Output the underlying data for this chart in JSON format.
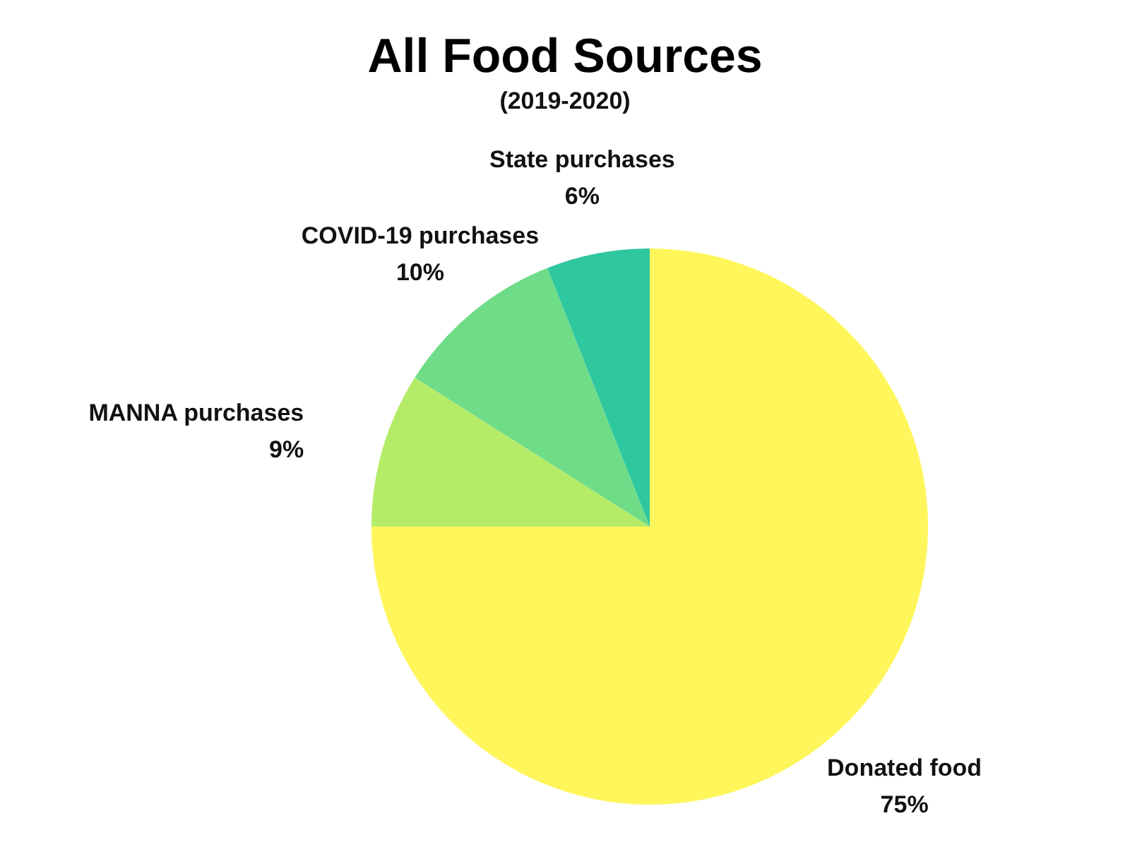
{
  "chart_data": {
    "type": "pie",
    "title": "All Food Sources",
    "subtitle": "(2019-2020)",
    "categories": [
      "Donated food",
      "MANNA purchases",
      "COVID-19 purchases",
      "State purchases"
    ],
    "values": [
      75,
      9,
      10,
      6
    ],
    "value_labels": [
      "75%",
      "9%",
      "10%",
      "6%"
    ],
    "colors": [
      "#fef65b",
      "#b4ec68",
      "#6fdc87",
      "#2ec79e"
    ],
    "legend": false
  }
}
